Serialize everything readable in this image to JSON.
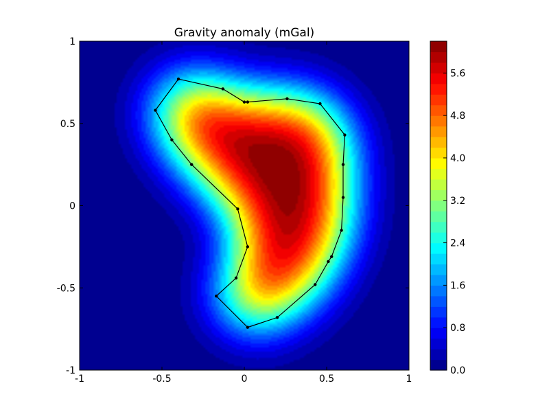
{
  "chart_data": {
    "type": "contour",
    "title": "Gravity anomaly (mGal)",
    "xlabel": "",
    "ylabel": "",
    "xlim": [
      -1,
      1
    ],
    "ylim": [
      -1,
      1
    ],
    "x_ticks": [
      -1,
      -0.5,
      0,
      0.5,
      1
    ],
    "x_tick_labels": [
      "-1",
      "-0.5",
      "0",
      "0.5",
      "1"
    ],
    "y_ticks": [
      -1,
      -0.5,
      0,
      0.5,
      1
    ],
    "y_tick_labels": [
      "-1",
      "-0.5",
      "0",
      "0.5",
      "1"
    ],
    "colormap": "jet",
    "value_range": [
      0.0,
      6.2
    ],
    "contour_levels": [
      0.0,
      0.2,
      0.4,
      0.6,
      0.8,
      1.0,
      1.2,
      1.4,
      1.6,
      1.8,
      2.0,
      2.2,
      2.4,
      2.6,
      2.8,
      3.0,
      3.2,
      3.4,
      3.6,
      3.8,
      4.0,
      4.2,
      4.4,
      4.6,
      4.8,
      5.0,
      5.2,
      5.4,
      5.6,
      5.8,
      6.0,
      6.2
    ],
    "colorbar_ticks": [
      0.0,
      0.8,
      1.6,
      2.4,
      3.2,
      4.0,
      4.8,
      5.6
    ],
    "colorbar_tick_labels": [
      "0.0",
      "0.8",
      "1.6",
      "2.4",
      "3.2",
      "4.0",
      "4.8",
      "5.6"
    ],
    "peak": {
      "x": 0.2,
      "y": 0.15,
      "value": 6.2
    },
    "polygon": {
      "color": "#000000",
      "vertices": [
        [
          -0.4,
          0.77
        ],
        [
          -0.13,
          0.71
        ],
        [
          0.0,
          0.63
        ],
        [
          0.02,
          0.63
        ],
        [
          0.26,
          0.65
        ],
        [
          0.46,
          0.62
        ],
        [
          0.61,
          0.43
        ],
        [
          0.6,
          0.25
        ],
        [
          0.6,
          0.05
        ],
        [
          0.59,
          -0.15
        ],
        [
          0.53,
          -0.31
        ],
        [
          0.51,
          -0.34
        ],
        [
          0.43,
          -0.48
        ],
        [
          0.2,
          -0.68
        ],
        [
          0.02,
          -0.74
        ],
        [
          -0.17,
          -0.55
        ],
        [
          -0.05,
          -0.44
        ],
        [
          0.02,
          -0.25
        ],
        [
          -0.04,
          -0.02
        ],
        [
          -0.32,
          0.25
        ],
        [
          -0.44,
          0.4
        ],
        [
          -0.54,
          0.58
        ]
      ]
    }
  }
}
